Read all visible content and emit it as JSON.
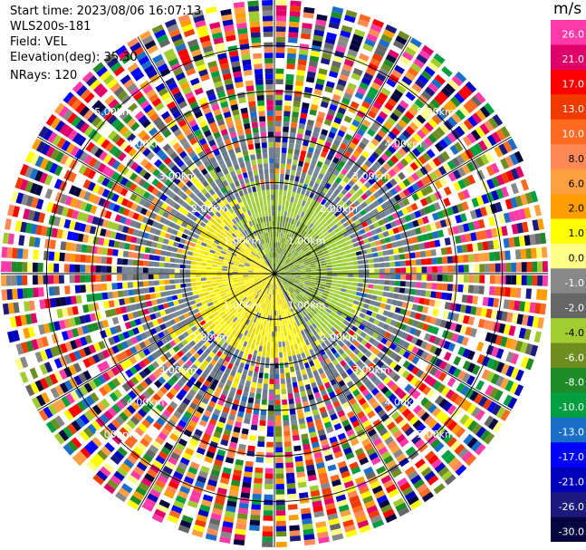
{
  "info": {
    "start_time": "Start time: 2023/08/06 16:07:13",
    "site": "WLS200s-181",
    "field": "Field: VEL",
    "elevation": "Elevation(deg): 35.30",
    "nrays": "NRays: 120"
  },
  "chart_data": {
    "type": "heatmap",
    "projection": "polar-ppi",
    "field": "VEL",
    "units": "m/s",
    "nrays": 120,
    "range_max_km": 6.0,
    "range_rings": [
      {
        "value": 1.0,
        "label": "1.00km"
      },
      {
        "value": 2.0,
        "label": "2.00km"
      },
      {
        "value": 3.0,
        "label": "3.00km"
      },
      {
        "value": 4.0,
        "label": "4.00km"
      },
      {
        "value": 5.0,
        "label": "5.00km"
      }
    ],
    "spokes_deg": [
      0,
      30,
      60,
      90,
      120,
      150,
      180,
      210,
      240,
      270,
      300,
      330
    ],
    "colorbar": {
      "ticks": [
        "26.0",
        "21.0",
        "17.0",
        "13.0",
        "10.0",
        "8.0",
        "6.0",
        "2.0",
        "1.0",
        "0.0",
        "-1.0",
        "-2.0",
        "-4.0",
        "-6.0",
        "-8.0",
        "-10.0",
        "-13.0",
        "-17.0",
        "-21.0",
        "-26.0",
        "-30.0"
      ],
      "colors": [
        "#ff3aa8",
        "#e0006a",
        "#ff0000",
        "#f03a00",
        "#ff6a20",
        "#ff8a55",
        "#ffa040",
        "#ff9e00",
        "#ffff00",
        "#ffff88",
        "#888888",
        "#666666",
        "#a0cc30",
        "#6e8e20",
        "#1e8a28",
        "#00a040",
        "#1a6ec8",
        "#0000ff",
        "#0000bb",
        "#1a1a80",
        "#050540"
      ],
      "nodata_color": "#ffffff"
    },
    "wind_pattern": {
      "inner_range_km": 1.9,
      "receding_side_deg": 30,
      "approaching_side_deg": 210
    }
  }
}
